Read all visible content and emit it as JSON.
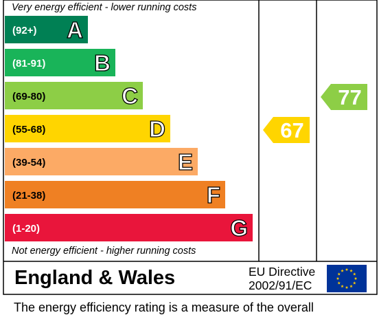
{
  "chart_data": {
    "type": "bar",
    "title": "",
    "top_caption": "Very energy efficient - lower running costs",
    "bottom_caption": "Not energy efficient - higher running costs",
    "bands": [
      {
        "letter": "A",
        "range": "(92+)",
        "color": "#008054"
      },
      {
        "letter": "B",
        "range": "(81-91)",
        "color": "#19b459"
      },
      {
        "letter": "C",
        "range": "(69-80)",
        "color": "#8dce46"
      },
      {
        "letter": "D",
        "range": "(55-68)",
        "color": "#ffd500"
      },
      {
        "letter": "E",
        "range": "(39-54)",
        "color": "#fcaa65"
      },
      {
        "letter": "F",
        "range": "(21-38)",
        "color": "#ef8023"
      },
      {
        "letter": "G",
        "range": "(1-20)",
        "color": "#e9153b"
      }
    ],
    "ratings": [
      {
        "column": "current",
        "value": 67,
        "band": "D",
        "color": "#ffd500"
      },
      {
        "column": "potential",
        "value": 77,
        "band": "C",
        "color": "#8dce46"
      }
    ]
  },
  "footer": {
    "region": "England & Wales",
    "directive_line1": "EU Directive",
    "directive_line2": "2002/91/EC",
    "flag": "eu-flag-icon",
    "note": "The energy efficiency rating is a measure of the overall"
  }
}
